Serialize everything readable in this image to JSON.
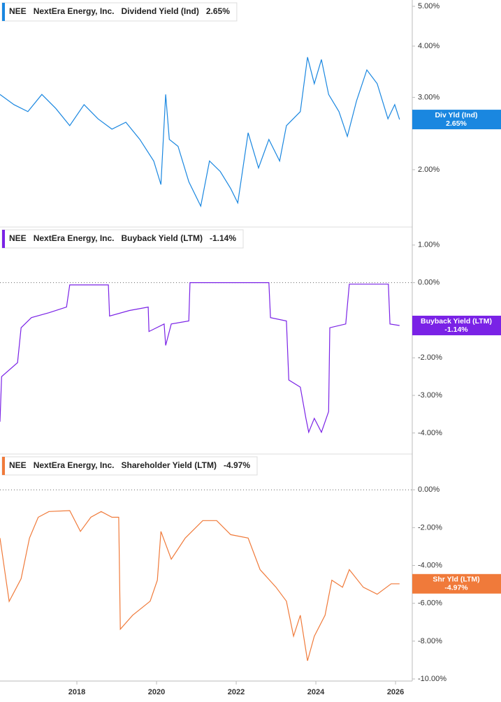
{
  "chart_data": [
    {
      "type": "line",
      "ticker": "NEE",
      "company": "NextEra Energy, Inc.",
      "log_scale": true,
      "zero_line": false,
      "xlim": [
        2016.07,
        2026.42
      ],
      "ylim": [
        1.45,
        5.18
      ],
      "yticks": [
        {
          "value": 2,
          "label": "2.00%"
        },
        {
          "value": 3,
          "label": "3.00%"
        },
        {
          "value": 4,
          "label": "4.00%"
        },
        {
          "value": 5,
          "label": "5.00%"
        }
      ],
      "series": [
        {
          "name": "Dividend Yield (Ind)",
          "tag": "Div Yld (Ind)",
          "color": "#1a87e0",
          "last_value": 2.65,
          "last_value_label": "2.65%",
          "x": [
            2016.07,
            2016.42,
            2016.77,
            2017.12,
            2017.47,
            2017.82,
            2018.18,
            2018.53,
            2018.88,
            2019.23,
            2019.58,
            2019.93,
            2020.11,
            2020.23,
            2020.32,
            2020.54,
            2020.81,
            2021.11,
            2021.33,
            2021.6,
            2021.86,
            2022.04,
            2022.3,
            2022.56,
            2022.82,
            2023.09,
            2023.26,
            2023.61,
            2023.79,
            2023.96,
            2024.14,
            2024.32,
            2024.58,
            2024.79,
            2025.02,
            2025.28,
            2025.54,
            2025.81,
            2025.98,
            2026.1
          ],
          "values": [
            3.05,
            2.88,
            2.77,
            3.05,
            2.82,
            2.56,
            2.88,
            2.66,
            2.51,
            2.61,
            2.37,
            2.1,
            1.84,
            3.05,
            2.37,
            2.28,
            1.87,
            1.63,
            2.1,
            1.98,
            1.8,
            1.66,
            2.46,
            2.02,
            2.37,
            2.1,
            2.56,
            2.77,
            3.76,
            3.24,
            3.71,
            3.05,
            2.77,
            2.41,
            2.94,
            3.5,
            3.24,
            2.66,
            2.88,
            2.65
          ]
        }
      ]
    },
    {
      "type": "line",
      "ticker": "NEE",
      "company": "NextEra Energy, Inc.",
      "log_scale": false,
      "zero_line": true,
      "xlim": [
        2016.07,
        2026.42
      ],
      "ylim": [
        -4.56,
        1.48
      ],
      "yticks": [
        {
          "value": -4,
          "label": "-4.00%"
        },
        {
          "value": -3,
          "label": "-3.00%"
        },
        {
          "value": -2,
          "label": "-2.00%"
        },
        {
          "value": 0,
          "label": "0.00%"
        },
        {
          "value": 1,
          "label": "1.00%"
        }
      ],
      "series": [
        {
          "name": "Buyback Yield (LTM)",
          "tag": "Buyback Yield (LTM)",
          "color": "#7a22e6",
          "last_value": -1.14,
          "last_value_label": "-1.14%",
          "x": [
            2016.07,
            2016.11,
            2016.51,
            2016.6,
            2016.86,
            2017.3,
            2017.74,
            2017.82,
            2018.79,
            2018.82,
            2019.32,
            2019.79,
            2019.81,
            2020.19,
            2020.23,
            2020.37,
            2020.81,
            2020.84,
            2022.82,
            2022.86,
            2023.26,
            2023.32,
            2023.61,
            2023.75,
            2023.82,
            2023.96,
            2024.14,
            2024.32,
            2024.35,
            2024.75,
            2024.84,
            2025.82,
            2025.86,
            2026.1
          ],
          "values": [
            -3.7,
            -2.5,
            -2.13,
            -1.2,
            -0.93,
            -0.8,
            -0.65,
            -0.06,
            -0.06,
            -0.89,
            -0.74,
            -0.65,
            -1.3,
            -1.1,
            -1.67,
            -1.1,
            -1.02,
            0,
            0,
            -0.93,
            -1.02,
            -2.59,
            -2.78,
            -3.61,
            -3.98,
            -3.61,
            -3.98,
            -3.43,
            -1.2,
            -1.1,
            -0.04,
            -0.04,
            -1.1,
            -1.14
          ]
        }
      ]
    },
    {
      "type": "line",
      "ticker": "NEE",
      "company": "NextEra Energy, Inc.",
      "log_scale": false,
      "zero_line": true,
      "xlim": [
        2016.07,
        2026.42
      ],
      "ylim": [
        -10.11,
        1.89
      ],
      "yticks": [
        {
          "value": -10,
          "label": "-10.00%"
        },
        {
          "value": -8,
          "label": "-8.00%"
        },
        {
          "value": -6,
          "label": "-6.00%"
        },
        {
          "value": -4,
          "label": "-4.00%"
        },
        {
          "value": -2,
          "label": "-2.00%"
        },
        {
          "value": 0,
          "label": "0.00%"
        }
      ],
      "xticks": [
        2018,
        2020,
        2022,
        2024,
        2026
      ],
      "series": [
        {
          "name": "Shareholder Yield (LTM)",
          "tag": "Shr Yld (LTM)",
          "color": "#f07a3a",
          "last_value": -4.97,
          "last_value_label": "-4.97%",
          "x": [
            2016.07,
            2016.3,
            2016.6,
            2016.81,
            2017.03,
            2017.3,
            2017.82,
            2018.09,
            2018.35,
            2018.61,
            2018.88,
            2019.05,
            2019.09,
            2019.4,
            2019.84,
            2020.02,
            2020.11,
            2020.37,
            2020.72,
            2021.16,
            2021.51,
            2021.86,
            2022.3,
            2022.6,
            2023.0,
            2023.26,
            2023.44,
            2023.61,
            2023.79,
            2023.96,
            2024.23,
            2024.4,
            2024.67,
            2024.84,
            2025.19,
            2025.54,
            2025.89,
            2026.1
          ],
          "values": [
            -2.55,
            -5.9,
            -4.7,
            -2.55,
            -1.45,
            -1.15,
            -1.1,
            -2.2,
            -1.45,
            -1.15,
            -1.45,
            -1.45,
            -7.37,
            -6.63,
            -5.89,
            -4.78,
            -2.2,
            -3.67,
            -2.55,
            -1.63,
            -1.63,
            -2.37,
            -2.55,
            -4.22,
            -5.15,
            -5.89,
            -7.74,
            -6.63,
            -9.04,
            -7.74,
            -6.63,
            -4.78,
            -5.15,
            -4.22,
            -5.15,
            -5.52,
            -4.97,
            -4.97
          ]
        }
      ]
    }
  ]
}
